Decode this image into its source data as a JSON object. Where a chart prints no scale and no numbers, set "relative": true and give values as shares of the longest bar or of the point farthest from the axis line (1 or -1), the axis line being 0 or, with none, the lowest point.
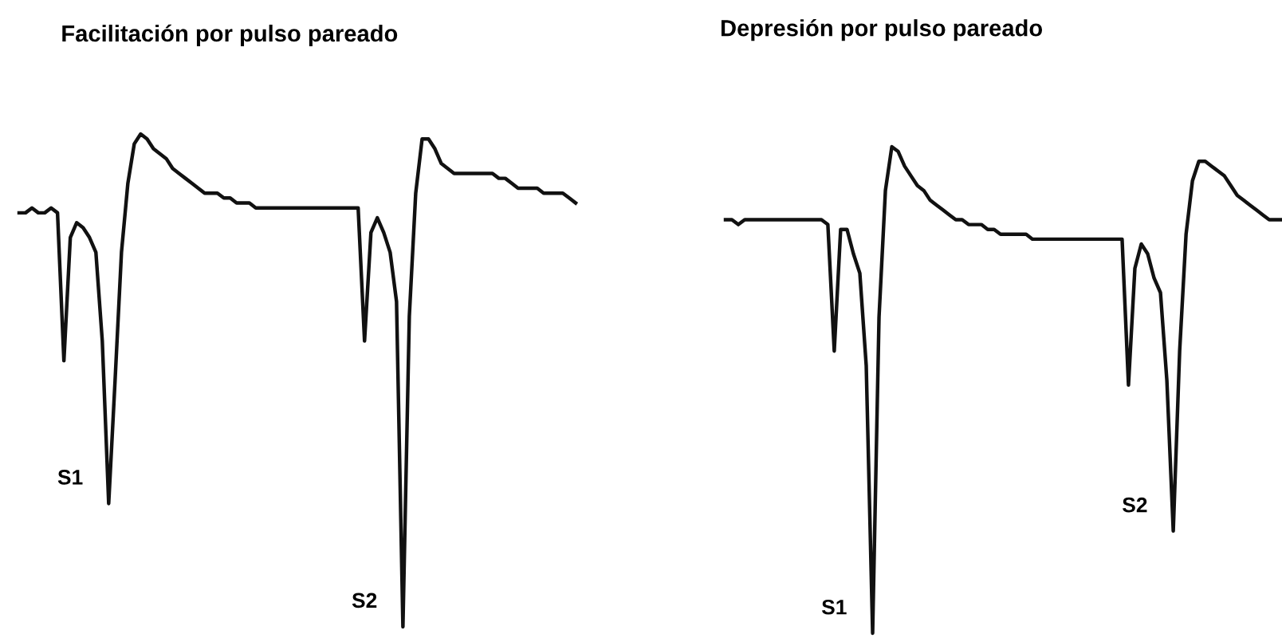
{
  "chart_data": [
    {
      "type": "line",
      "title": "Facilitación por pulso pareado",
      "relative": true,
      "categories": [
        null,
        null,
        null,
        null,
        null,
        null,
        null,
        null,
        null,
        null,
        null,
        null,
        null,
        null,
        null,
        null,
        null,
        null,
        null,
        null,
        null,
        null,
        null,
        null,
        null,
        null,
        null,
        null,
        null,
        null,
        null,
        null,
        null,
        null,
        null,
        null,
        null,
        null,
        null,
        null,
        null,
        null,
        null,
        null,
        null,
        null,
        null,
        null,
        null,
        null,
        null,
        null,
        null,
        null,
        null,
        null,
        null,
        null,
        null,
        null,
        null,
        null,
        null,
        null,
        null,
        null,
        null,
        null,
        null,
        null,
        null,
        null,
        null,
        null,
        null,
        null,
        null,
        null,
        null,
        null,
        null,
        null,
        null,
        null,
        null,
        null,
        null,
        null
      ],
      "series": [
        {
          "color": "#111111",
          "values": [
            0.84,
            0.84,
            0.85,
            0.84,
            0.84,
            0.85,
            0.84,
            0.54,
            0.79,
            0.82,
            0.81,
            0.79,
            0.76,
            0.58,
            0.25,
            0.5,
            0.76,
            0.9,
            0.98,
            1.0,
            0.99,
            0.97,
            0.96,
            0.95,
            0.93,
            0.92,
            0.91,
            0.9,
            0.89,
            0.88,
            0.88,
            0.88,
            0.87,
            0.87,
            0.86,
            0.86,
            0.86,
            0.85,
            0.85,
            0.85,
            0.85,
            0.85,
            0.85,
            0.85,
            0.85,
            0.85,
            0.85,
            0.85,
            0.85,
            0.85,
            0.85,
            0.85,
            0.85,
            0.85,
            0.58,
            0.8,
            0.83,
            0.8,
            0.76,
            0.66,
            0,
            0.63,
            0.88,
            0.99,
            0.99,
            0.97,
            0.94,
            0.93,
            0.92,
            0.92,
            0.92,
            0.92,
            0.92,
            0.92,
            0.92,
            0.91,
            0.91,
            0.9,
            0.89,
            0.89,
            0.89,
            0.89,
            0.88,
            0.88,
            0.88,
            0.88,
            0.87,
            0.86
          ]
        }
      ],
      "annotations": [
        "S1",
        "S2"
      ]
    },
    {
      "type": "line",
      "title": "Depresión por pulso pareado",
      "relative": true,
      "categories": [
        null,
        null,
        null,
        null,
        null,
        null,
        null,
        null,
        null,
        null,
        null,
        null,
        null,
        null,
        null,
        null,
        null,
        null,
        null,
        null,
        null,
        null,
        null,
        null,
        null,
        null,
        null,
        null,
        null,
        null,
        null,
        null,
        null,
        null,
        null,
        null,
        null,
        null,
        null,
        null,
        null,
        null,
        null,
        null,
        null,
        null,
        null,
        null,
        null,
        null,
        null,
        null,
        null,
        null,
        null,
        null,
        null,
        null,
        null,
        null,
        null,
        null,
        null,
        null,
        null,
        null,
        null,
        null,
        null,
        null,
        null,
        null,
        null,
        null,
        null,
        null,
        null,
        null,
        null,
        null,
        null,
        null,
        null,
        null,
        null,
        null,
        null,
        null
      ],
      "series": [
        {
          "color": "#111111",
          "values": [
            0.85,
            0.85,
            0.84,
            0.85,
            0.85,
            0.85,
            0.85,
            0.85,
            0.85,
            0.85,
            0.85,
            0.85,
            0.85,
            0.85,
            0.85,
            0.85,
            0.84,
            0.58,
            0.83,
            0.83,
            0.78,
            0.74,
            0.55,
            0,
            0.65,
            0.91,
            1.0,
            0.99,
            0.96,
            0.94,
            0.92,
            0.91,
            0.89,
            0.88,
            0.87,
            0.86,
            0.85,
            0.85,
            0.84,
            0.84,
            0.84,
            0.83,
            0.83,
            0.82,
            0.82,
            0.82,
            0.82,
            0.82,
            0.81,
            0.81,
            0.81,
            0.81,
            0.81,
            0.81,
            0.81,
            0.81,
            0.81,
            0.81,
            0.81,
            0.81,
            0.81,
            0.81,
            0.81,
            0.51,
            0.75,
            0.8,
            0.78,
            0.73,
            0.7,
            0.52,
            0.21,
            0.58,
            0.82,
            0.93,
            0.97,
            0.97,
            0.96,
            0.95,
            0.94,
            0.92,
            0.9,
            0.89,
            0.88,
            0.87,
            0.86,
            0.85,
            0.85,
            0.85
          ]
        }
      ],
      "annotations": [
        "S1",
        "S2"
      ]
    }
  ]
}
